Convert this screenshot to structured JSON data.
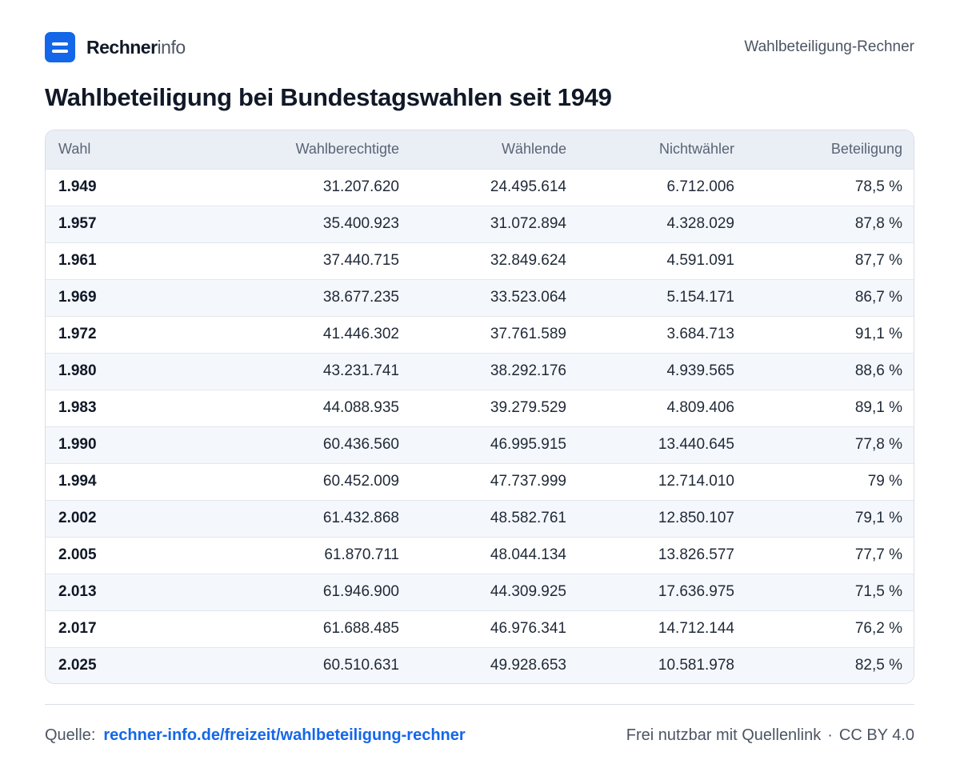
{
  "brand": {
    "name_strong": "Rechner",
    "name_light": "info"
  },
  "header": {
    "right_label": "Wahlbeteiligung-Rechner"
  },
  "title": "Wahlbeteiligung bei Bundestagswahlen seit 1949",
  "table": {
    "columns": [
      "Wahl",
      "Wahlberechtigte",
      "Wählende",
      "Nichtwähler",
      "Beteiligung"
    ],
    "rows": [
      [
        "1.949",
        "31.207.620",
        "24.495.614",
        "6.712.006",
        "78,5 %"
      ],
      [
        "1.957",
        "35.400.923",
        "31.072.894",
        "4.328.029",
        "87,8 %"
      ],
      [
        "1.961",
        "37.440.715",
        "32.849.624",
        "4.591.091",
        "87,7 %"
      ],
      [
        "1.969",
        "38.677.235",
        "33.523.064",
        "5.154.171",
        "86,7 %"
      ],
      [
        "1.972",
        "41.446.302",
        "37.761.589",
        "3.684.713",
        "91,1 %"
      ],
      [
        "1.980",
        "43.231.741",
        "38.292.176",
        "4.939.565",
        "88,6 %"
      ],
      [
        "1.983",
        "44.088.935",
        "39.279.529",
        "4.809.406",
        "89,1 %"
      ],
      [
        "1.990",
        "60.436.560",
        "46.995.915",
        "13.440.645",
        "77,8 %"
      ],
      [
        "1.994",
        "60.452.009",
        "47.737.999",
        "12.714.010",
        "79 %"
      ],
      [
        "2.002",
        "61.432.868",
        "48.582.761",
        "12.850.107",
        "79,1 %"
      ],
      [
        "2.005",
        "61.870.711",
        "48.044.134",
        "13.826.577",
        "77,7 %"
      ],
      [
        "2.013",
        "61.946.900",
        "44.309.925",
        "17.636.975",
        "71,5 %"
      ],
      [
        "2.017",
        "61.688.485",
        "46.976.341",
        "14.712.144",
        "76,2 %"
      ],
      [
        "2.025",
        "60.510.631",
        "49.928.653",
        "10.581.978",
        "82,5 %"
      ]
    ]
  },
  "footer": {
    "source_label": "Quelle:",
    "source_link": "rechner-info.de/freizeit/wahlbeteiligung-rechner",
    "license_text": "Frei nutzbar mit Quellenlink",
    "separator": "·",
    "license": "CC BY 4.0"
  },
  "colors": {
    "accent": "#1467e8",
    "header_bg": "#eaeff6",
    "stripe": "#f4f7fb"
  }
}
